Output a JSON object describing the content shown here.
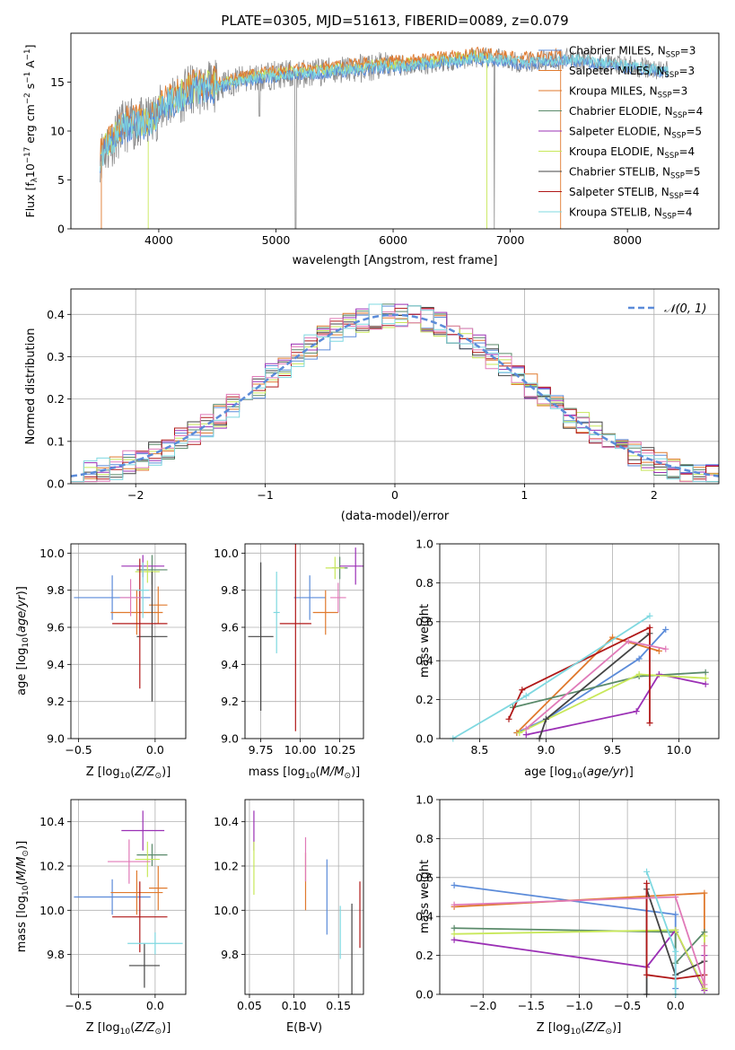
{
  "colors": {
    "chabrier_miles": "#5b8bd9",
    "salpeter_miles": "#e07a2e",
    "kroupa_miles": "#e07a2e",
    "chabrier_elodie": "#5a8a6a",
    "salpeter_elodie": "#9b30b5",
    "kroupa_elodie": "#c8e85a",
    "chabrier_stelib": "#444444",
    "salpeter_stelib": "#b01818",
    "kroupa_stelib": "#7fd8e0",
    "pink": "#e07ab8",
    "normal_curve": "#5b8bd9"
  },
  "chart_data": [
    {
      "id": "spectrum",
      "type": "line",
      "title": "PLATE=0305, MJD=51613, FIBERID=0089, z=0.079",
      "xlabel": "wavelength [Angstrom, rest frame]",
      "ylabel": "Flux [f_λ10^-17 erg cm^-2 s^-1 A^-1]",
      "xlim": [
        3250,
        8780
      ],
      "ylim": [
        0,
        20
      ],
      "xticks": [
        4000,
        5000,
        6000,
        7000,
        8000
      ],
      "yticks": [
        0,
        5,
        10,
        15
      ],
      "legend_position": "top-right",
      "legend": [
        {
          "label": "Chabrier MILES, N_SSP=3",
          "color": "#5b8bd9"
        },
        {
          "label": "Salpeter MILES, N_SSP=3",
          "color": "#e07a2e"
        },
        {
          "label": "Kroupa MILES, N_SSP=3",
          "color": "#e07a2e"
        },
        {
          "label": "Chabrier ELODIE, N_SSP=4",
          "color": "#5a8a6a"
        },
        {
          "label": "Salpeter ELODIE, N_SSP=5",
          "color": "#9b30b5"
        },
        {
          "label": "Kroupa ELODIE, N_SSP=4",
          "color": "#c8e85a"
        },
        {
          "label": "Chabrier STELIB, N_SSP=5",
          "color": "#444444"
        },
        {
          "label": "Salpeter STELIB, N_SSP=4",
          "color": "#b01818"
        },
        {
          "label": "Kroupa STELIB, N_SSP=4",
          "color": "#7fd8e0"
        }
      ],
      "data_envelope": {
        "x": [
          3500,
          3700,
          3900,
          4100,
          4300,
          4500,
          4700,
          4900,
          5100,
          5300,
          5500,
          5700,
          5900,
          6100,
          6300,
          6500,
          6700,
          6900,
          7100,
          7300,
          7500,
          7700,
          7900,
          8100,
          8300
        ],
        "y": [
          7.5,
          10.5,
          10.8,
          13.0,
          14.2,
          14.6,
          15.2,
          15.6,
          15.8,
          15.9,
          16.2,
          16.4,
          16.6,
          16.7,
          16.9,
          17.2,
          17.5,
          17.3,
          17.0,
          17.2,
          17.4,
          17.1,
          16.8,
          16.5,
          16.2
        ]
      },
      "model_end_x": {
        "miles": 7430,
        "elodie": 6800,
        "stelib": 8350
      }
    },
    {
      "id": "residuals",
      "type": "step",
      "xlabel": "(data-model)/error",
      "ylabel": "Normed distribution",
      "xlim": [
        -2.5,
        2.5
      ],
      "ylim": [
        0,
        0.46
      ],
      "xticks": [
        -2,
        -1,
        0,
        1,
        2
      ],
      "yticks": [
        0.0,
        0.1,
        0.2,
        0.3,
        0.4
      ],
      "legend": [
        {
          "label": "𝒩(0, 1)",
          "style": "dashed"
        }
      ],
      "bin_width": 0.1
    },
    {
      "id": "age_vs_Z",
      "type": "errorbar",
      "xlabel": "Z [log10(Z/Z⊙)]",
      "ylabel": "age  [log10(age/yr)]",
      "xlim": [
        -0.55,
        0.2
      ],
      "ylim": [
        9.0,
        10.05
      ],
      "xticks": [
        -0.5,
        0.0
      ],
      "yticks": [
        9.0,
        9.2,
        9.4,
        9.6,
        9.8,
        10.0
      ],
      "points": [
        {
          "x": -0.28,
          "y": 9.76,
          "xerr": 0.25,
          "yerr": 0.12,
          "c": "#5b8bd9"
        },
        {
          "x": -0.12,
          "y": 9.68,
          "xerr": 0.17,
          "yerr": 0.12,
          "c": "#e07a2e"
        },
        {
          "x": 0.02,
          "y": 9.72,
          "xerr": 0.06,
          "yerr": 0.1,
          "c": "#e07a2e"
        },
        {
          "x": -0.02,
          "y": 9.91,
          "xerr": 0.1,
          "yerr": 0.08,
          "c": "#5a8a6a"
        },
        {
          "x": -0.08,
          "y": 9.93,
          "xerr": 0.14,
          "yerr": 0.06,
          "c": "#9b30b5"
        },
        {
          "x": -0.05,
          "y": 9.9,
          "xerr": 0.08,
          "yerr": 0.06,
          "c": "#c8e85a"
        },
        {
          "x": -0.02,
          "y": 9.55,
          "xerr": 0.1,
          "yerr": 0.35,
          "c": "#444444"
        },
        {
          "x": -0.1,
          "y": 9.62,
          "xerr": 0.18,
          "yerr": 0.35,
          "c": "#b01818"
        },
        {
          "x": -0.16,
          "y": 9.76,
          "xerr": 0.07,
          "yerr": 0.1,
          "c": "#e07ab8"
        },
        {
          "x": -0.08,
          "y": 9.8,
          "xerr": 0.04,
          "yerr": 0.15,
          "c": "#7fd8e0"
        }
      ]
    },
    {
      "id": "age_vs_mass",
      "type": "errorbar",
      "xlabel": "mass [log10(M/M⊙)]",
      "ylabel": "",
      "xlim": [
        9.65,
        10.4
      ],
      "ylim": [
        9.0,
        10.05
      ],
      "xticks": [
        9.75,
        10.0,
        10.25
      ],
      "yticks": [
        9.0,
        9.2,
        9.4,
        9.6,
        9.8,
        10.0
      ],
      "points": [
        {
          "x": 10.06,
          "y": 9.76,
          "xerr": 0.1,
          "yerr": 0.12,
          "c": "#5b8bd9"
        },
        {
          "x": 10.16,
          "y": 9.68,
          "xerr": 0.08,
          "yerr": 0.12,
          "c": "#e07a2e"
        },
        {
          "x": 10.25,
          "y": 9.92,
          "xerr": 0.05,
          "yerr": 0.06,
          "c": "#5a8a6a"
        },
        {
          "x": 10.35,
          "y": 9.93,
          "xerr": 0.1,
          "yerr": 0.1,
          "c": "#9b30b5"
        },
        {
          "x": 10.22,
          "y": 9.92,
          "xerr": 0.06,
          "yerr": 0.06,
          "c": "#c8e85a"
        },
        {
          "x": 9.75,
          "y": 9.55,
          "xerr": 0.08,
          "yerr": 0.4,
          "c": "#444444"
        },
        {
          "x": 9.97,
          "y": 9.62,
          "xerr": 0.1,
          "yerr": 0.58,
          "c": "#b01818"
        },
        {
          "x": 10.24,
          "y": 9.76,
          "xerr": 0.05,
          "yerr": 0.08,
          "c": "#e07ab8"
        },
        {
          "x": 9.85,
          "y": 9.68,
          "xerr": 0.02,
          "yerr": 0.22,
          "c": "#7fd8e0"
        }
      ]
    },
    {
      "id": "mass_weight_vs_age",
      "type": "line",
      "xlabel": "age  [log10(age/yr)]",
      "ylabel": "mass weight",
      "xlim": [
        8.2,
        10.3
      ],
      "ylim": [
        0.0,
        1.0
      ],
      "xticks": [
        8.5,
        9.0,
        9.5,
        10.0
      ],
      "yticks": [
        0.0,
        0.2,
        0.4,
        0.6,
        0.8,
        1.0
      ],
      "series": [
        {
          "c": "#5b8bd9",
          "x": [
            8.78,
            9.0,
            9.7,
            9.9
          ],
          "y": [
            0.03,
            0.1,
            0.41,
            0.56
          ]
        },
        {
          "c": "#e07a2e",
          "x": [
            8.78,
            9.5,
            9.85
          ],
          "y": [
            0.03,
            0.52,
            0.45
          ]
        },
        {
          "c": "#5a8a6a",
          "x": [
            8.75,
            9.7,
            10.2
          ],
          "y": [
            0.16,
            0.32,
            0.34
          ]
        },
        {
          "c": "#9b30b5",
          "x": [
            8.85,
            9.68,
            9.85,
            10.2
          ],
          "y": [
            0.02,
            0.14,
            0.33,
            0.28
          ]
        },
        {
          "c": "#c8e85a",
          "x": [
            8.8,
            9.7,
            10.2
          ],
          "y": [
            0.03,
            0.33,
            0.31
          ]
        },
        {
          "c": "#444444",
          "x": [
            8.95,
            9.0,
            9.78
          ],
          "y": [
            0.0,
            0.1,
            0.54
          ]
        },
        {
          "c": "#b01818",
          "x": [
            8.72,
            8.82,
            9.78,
            9.78
          ],
          "y": [
            0.1,
            0.25,
            0.57,
            0.08
          ]
        },
        {
          "c": "#e07ab8",
          "x": [
            8.85,
            9.62,
            9.9
          ],
          "y": [
            0.05,
            0.5,
            0.46
          ]
        },
        {
          "c": "#7fd8e0",
          "x": [
            8.3,
            8.85,
            9.78
          ],
          "y": [
            0.0,
            0.22,
            0.63
          ]
        }
      ]
    },
    {
      "id": "mass_vs_Z",
      "type": "errorbar",
      "xlabel": "Z [log10(Z/Z⊙)]",
      "ylabel": "mass [log10(M/M⊙)]",
      "xlim": [
        -0.55,
        0.2
      ],
      "ylim": [
        9.62,
        10.5
      ],
      "xticks": [
        -0.5,
        0.0
      ],
      "yticks": [
        9.8,
        10.0,
        10.2,
        10.4
      ],
      "points": [
        {
          "x": -0.28,
          "y": 10.06,
          "xerr": 0.25,
          "yerr": 0.08,
          "c": "#5b8bd9"
        },
        {
          "x": -0.12,
          "y": 10.08,
          "xerr": 0.17,
          "yerr": 0.1,
          "c": "#e07a2e"
        },
        {
          "x": 0.02,
          "y": 10.1,
          "xerr": 0.06,
          "yerr": 0.1,
          "c": "#e07a2e"
        },
        {
          "x": -0.02,
          "y": 10.25,
          "xerr": 0.1,
          "yerr": 0.05,
          "c": "#5a8a6a"
        },
        {
          "x": -0.08,
          "y": 10.36,
          "xerr": 0.14,
          "yerr": 0.09,
          "c": "#9b30b5"
        },
        {
          "x": -0.05,
          "y": 10.23,
          "xerr": 0.08,
          "yerr": 0.08,
          "c": "#c8e85a"
        },
        {
          "x": -0.07,
          "y": 9.75,
          "xerr": 0.1,
          "yerr": 0.1,
          "c": "#444444"
        },
        {
          "x": -0.1,
          "y": 9.97,
          "xerr": 0.18,
          "yerr": 0.16,
          "c": "#b01818"
        },
        {
          "x": -0.17,
          "y": 10.22,
          "xerr": 0.14,
          "yerr": 0.1,
          "c": "#e07ab8"
        },
        {
          "x": 0.0,
          "y": 9.85,
          "xerr": 0.18,
          "yerr": 0.05,
          "c": "#7fd8e0"
        }
      ]
    },
    {
      "id": "mass_vs_EBV",
      "type": "errorbar",
      "xlabel": "E(B-V)",
      "ylabel": "",
      "xlim": [
        0.045,
        0.178
      ],
      "ylim": [
        9.62,
        10.5
      ],
      "xticks": [
        0.05,
        0.1,
        0.15
      ],
      "yticks": [
        9.8,
        10.0,
        10.2,
        10.4
      ],
      "points": [
        {
          "x": 0.137,
          "y": 10.06,
          "xerr": 0,
          "yerr": 0.17,
          "c": "#5b8bd9"
        },
        {
          "x": 0.113,
          "y": 10.13,
          "xerr": 0,
          "yerr": 0.13,
          "c": "#e07a2e"
        },
        {
          "x": 0.113,
          "y": 10.23,
          "xerr": 0,
          "yerr": 0.1,
          "c": "#e07ab8"
        },
        {
          "x": 0.055,
          "y": 10.36,
          "xerr": 0,
          "yerr": 0.09,
          "c": "#9b30b5"
        },
        {
          "x": 0.055,
          "y": 10.19,
          "xerr": 0,
          "yerr": 0.12,
          "c": "#c8e85a"
        },
        {
          "x": 0.165,
          "y": 9.78,
          "xerr": 0,
          "yerr": 0.25,
          "c": "#444444"
        },
        {
          "x": 0.174,
          "y": 9.98,
          "xerr": 0,
          "yerr": 0.15,
          "c": "#b01818"
        },
        {
          "x": 0.152,
          "y": 9.9,
          "xerr": 0,
          "yerr": 0.12,
          "c": "#7fd8e0"
        }
      ]
    },
    {
      "id": "mass_weight_vs_Z",
      "type": "line",
      "xlabel": "Z [log10(Z/Z⊙)]",
      "ylabel": "mass weight",
      "xlim": [
        -2.45,
        0.45
      ],
      "ylim": [
        0.0,
        1.0
      ],
      "xticks": [
        -2.0,
        -1.5,
        -1.0,
        -0.5,
        0.0
      ],
      "yticks": [
        0.0,
        0.2,
        0.4,
        0.6,
        0.8,
        1.0
      ],
      "series": [
        {
          "c": "#5b8bd9",
          "x": [
            -2.3,
            0.0,
            0.0
          ],
          "y": [
            0.56,
            0.41,
            0.03
          ]
        },
        {
          "c": "#e07a2e",
          "x": [
            -2.3,
            0.3,
            0.3
          ],
          "y": [
            0.45,
            0.52,
            0.03
          ]
        },
        {
          "c": "#5a8a6a",
          "x": [
            -2.3,
            0.0,
            0.0,
            0.3
          ],
          "y": [
            0.34,
            0.32,
            0.16,
            0.32
          ]
        },
        {
          "c": "#9b30b5",
          "x": [
            -2.3,
            -0.3,
            0.0,
            0.3,
            0.3
          ],
          "y": [
            0.28,
            0.14,
            0.33,
            0.02,
            0.2
          ]
        },
        {
          "c": "#c8e85a",
          "x": [
            -2.3,
            0.0,
            0.3,
            0.3
          ],
          "y": [
            0.31,
            0.33,
            0.03,
            0.3
          ]
        },
        {
          "c": "#444444",
          "x": [
            -0.3,
            -0.3,
            0.0,
            0.3
          ],
          "y": [
            0.0,
            0.54,
            0.1,
            0.17
          ]
        },
        {
          "c": "#b01818",
          "x": [
            -0.3,
            -0.3,
            0.0,
            0.3
          ],
          "y": [
            0.57,
            0.1,
            0.08,
            0.1
          ]
        },
        {
          "c": "#e07ab8",
          "x": [
            -2.3,
            0.0,
            0.3,
            0.3
          ],
          "y": [
            0.46,
            0.5,
            0.05,
            0.25
          ]
        },
        {
          "c": "#7fd8e0",
          "x": [
            -0.3,
            0.0,
            0.0
          ],
          "y": [
            0.63,
            0.22,
            0.0
          ]
        }
      ]
    }
  ]
}
